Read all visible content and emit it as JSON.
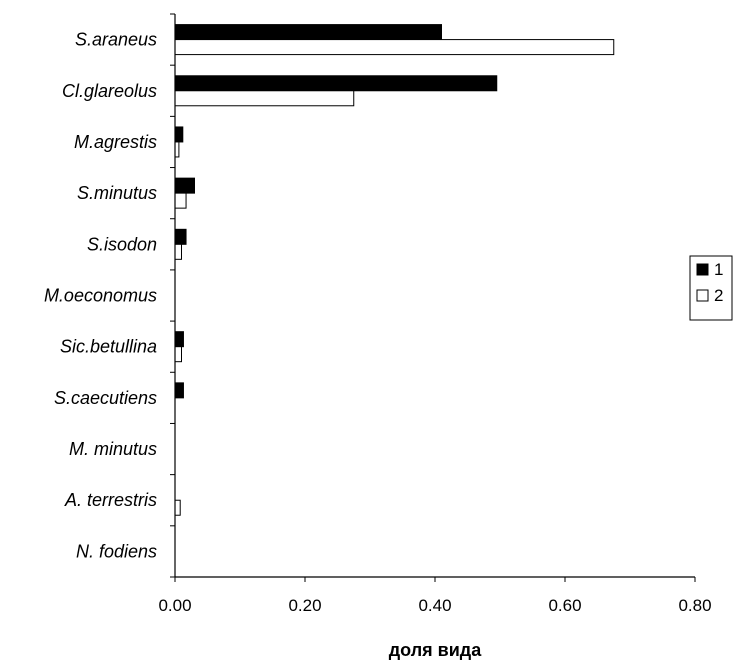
{
  "chart_data": {
    "type": "bar",
    "orientation": "horizontal",
    "categories": [
      "S.araneus",
      "Cl.glareolus",
      "M.agrestis",
      "S.minutus",
      "S.isodon",
      "M.oeconomus",
      "Sic.betullina",
      "S.caecutiens",
      "M. minutus",
      "A. terrestris",
      "N. fodiens"
    ],
    "series": [
      {
        "name": "1",
        "color": "#000000",
        "values": [
          0.41,
          0.495,
          0.012,
          0.03,
          0.017,
          0,
          0.013,
          0.013,
          0,
          0,
          0
        ]
      },
      {
        "name": "2",
        "color": "#ffffff",
        "values": [
          0.675,
          0.275,
          0.006,
          0.017,
          0.01,
          0,
          0.01,
          0,
          0,
          0.008,
          0
        ]
      }
    ],
    "xlabel": "доля вида",
    "xlim": [
      0,
      0.8
    ],
    "xticks": [
      "0.00",
      "0.20",
      "0.40",
      "0.60",
      "0.80"
    ],
    "grid": false,
    "legend_position": "right"
  }
}
